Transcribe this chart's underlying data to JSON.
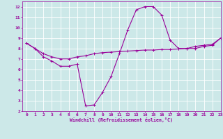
{
  "xlabel": "Windchill (Refroidissement éolien,°C)",
  "bg_color": "#cce8e8",
  "grid_color": "#ffffff",
  "line_color": "#990099",
  "xlim": [
    -0.5,
    23
  ],
  "ylim": [
    2,
    12.5
  ],
  "xticks": [
    0,
    1,
    2,
    3,
    4,
    5,
    6,
    7,
    8,
    9,
    10,
    11,
    12,
    13,
    14,
    15,
    16,
    17,
    18,
    19,
    20,
    21,
    22,
    23
  ],
  "yticks": [
    2,
    3,
    4,
    5,
    6,
    7,
    8,
    9,
    10,
    11,
    12
  ],
  "curve1_x": [
    0,
    1,
    2,
    3,
    4,
    5,
    6,
    7,
    8,
    9,
    10,
    11,
    12,
    13,
    14,
    15,
    16,
    17,
    18,
    19,
    20,
    21,
    22,
    23
  ],
  "curve1_y": [
    8.5,
    8.0,
    7.2,
    6.8,
    6.3,
    6.3,
    6.5,
    2.5,
    2.6,
    3.8,
    5.3,
    7.5,
    9.8,
    11.7,
    12.0,
    12.0,
    11.2,
    8.8,
    8.0,
    8.0,
    8.2,
    8.3,
    8.4,
    9.0
  ],
  "curve2_x": [
    0,
    1,
    2,
    3,
    4,
    5,
    6,
    7,
    8,
    9,
    10,
    11,
    12,
    13,
    14,
    15,
    16,
    17,
    18,
    19,
    20,
    21,
    22,
    23
  ],
  "curve2_y": [
    8.5,
    8.0,
    7.5,
    7.2,
    7.0,
    7.0,
    7.2,
    7.3,
    7.5,
    7.6,
    7.65,
    7.7,
    7.75,
    7.8,
    7.85,
    7.85,
    7.9,
    7.9,
    7.95,
    8.0,
    8.0,
    8.2,
    8.3,
    9.0
  ]
}
